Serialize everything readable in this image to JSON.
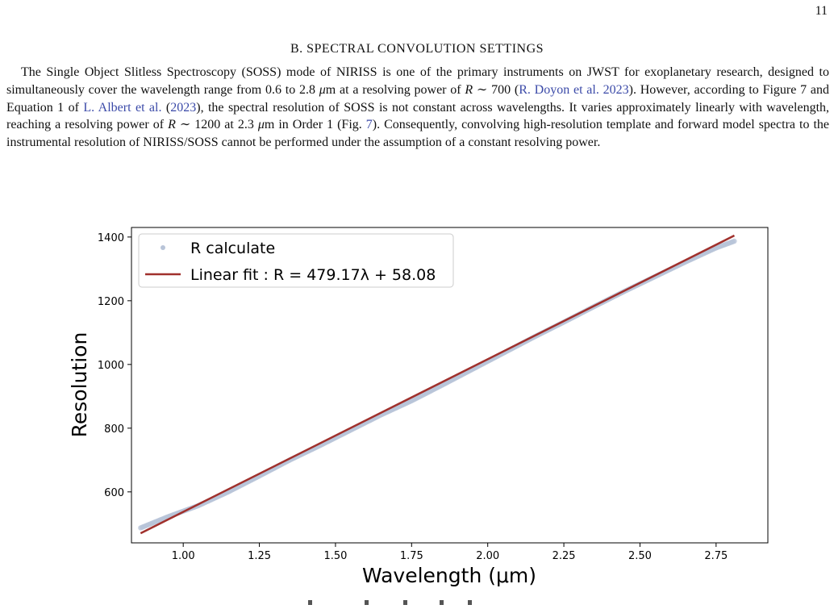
{
  "page": {
    "number": "11"
  },
  "section": {
    "heading": "B. SPECTRAL CONVOLUTION SETTINGS"
  },
  "paragraph": {
    "s1": "The Single Object Slitless Spectroscopy (SOSS) mode of NIRISS is one of the primary instruments on JWST for exoplanetary research, designed to simultaneously cover the wavelength range from 0.6 to 2.8 ",
    "s1_mu": "μ",
    "s1b": "m at a resolving power of ",
    "s1_R": "R",
    "s1c": " ∼ 700 (",
    "cite_doyon": "R. Doyon et al. 2023",
    "s2": "). However, according to Figure 7 and Equation 1 of ",
    "cite_albert": "L. Albert et al.",
    "s2b": " (",
    "cite_albert_year": "2023",
    "s2c": "), the spectral resolution of SOSS is not constant across wavelengths. It varies approximately linearly with wavelength, reaching a resolving power of ",
    "s3_R": "R",
    "s3": " ∼ 1200 at 2.3 ",
    "s3_mu": "μ",
    "s3b": "m in Order 1 (Fig. ",
    "fig_ref": "7",
    "s3c": "). Consequently, convolving high-resolution template and forward model spectra to the instrumental resolution of NIRISS/SOSS cannot be performed under the assumption of a constant resolving power."
  },
  "chart_data": {
    "type": "scatter",
    "xlabel": "Wavelength (μm)",
    "ylabel": "Resolution",
    "xlim": [
      0.83,
      2.92
    ],
    "ylim": [
      440,
      1430
    ],
    "xticks": [
      "1.00",
      "1.25",
      "1.50",
      "1.75",
      "2.00",
      "2.25",
      "2.50",
      "2.75"
    ],
    "xtick_values": [
      1.0,
      1.25,
      1.5,
      1.75,
      2.0,
      2.25,
      2.5,
      2.75
    ],
    "yticks": [
      "600",
      "800",
      "1000",
      "1200",
      "1400"
    ],
    "ytick_values": [
      600,
      800,
      1000,
      1200,
      1400
    ],
    "grid": false,
    "legend_position": "top-left",
    "series": [
      {
        "name": "R calculate",
        "kind": "points",
        "color": "#b8c4d8",
        "x": [
          0.86,
          0.95,
          1.05,
          1.15,
          1.25,
          1.35,
          1.45,
          1.55,
          1.65,
          1.75,
          1.85,
          1.95,
          2.05,
          2.15,
          2.25,
          2.35,
          2.45,
          2.55,
          2.65,
          2.75,
          2.81
        ],
        "y": [
          487,
          522,
          557,
          601,
          650,
          700,
          746,
          794,
          842,
          886,
          935,
          985,
          1035,
          1085,
          1133,
          1182,
          1230,
          1276,
          1322,
          1366,
          1387
        ]
      },
      {
        "name": "Linear fit : R = 479.17λ + 58.08",
        "kind": "line",
        "color": "#a0302c",
        "slope": 479.17,
        "intercept": 58.08,
        "x_range": [
          0.86,
          2.81
        ]
      }
    ]
  }
}
